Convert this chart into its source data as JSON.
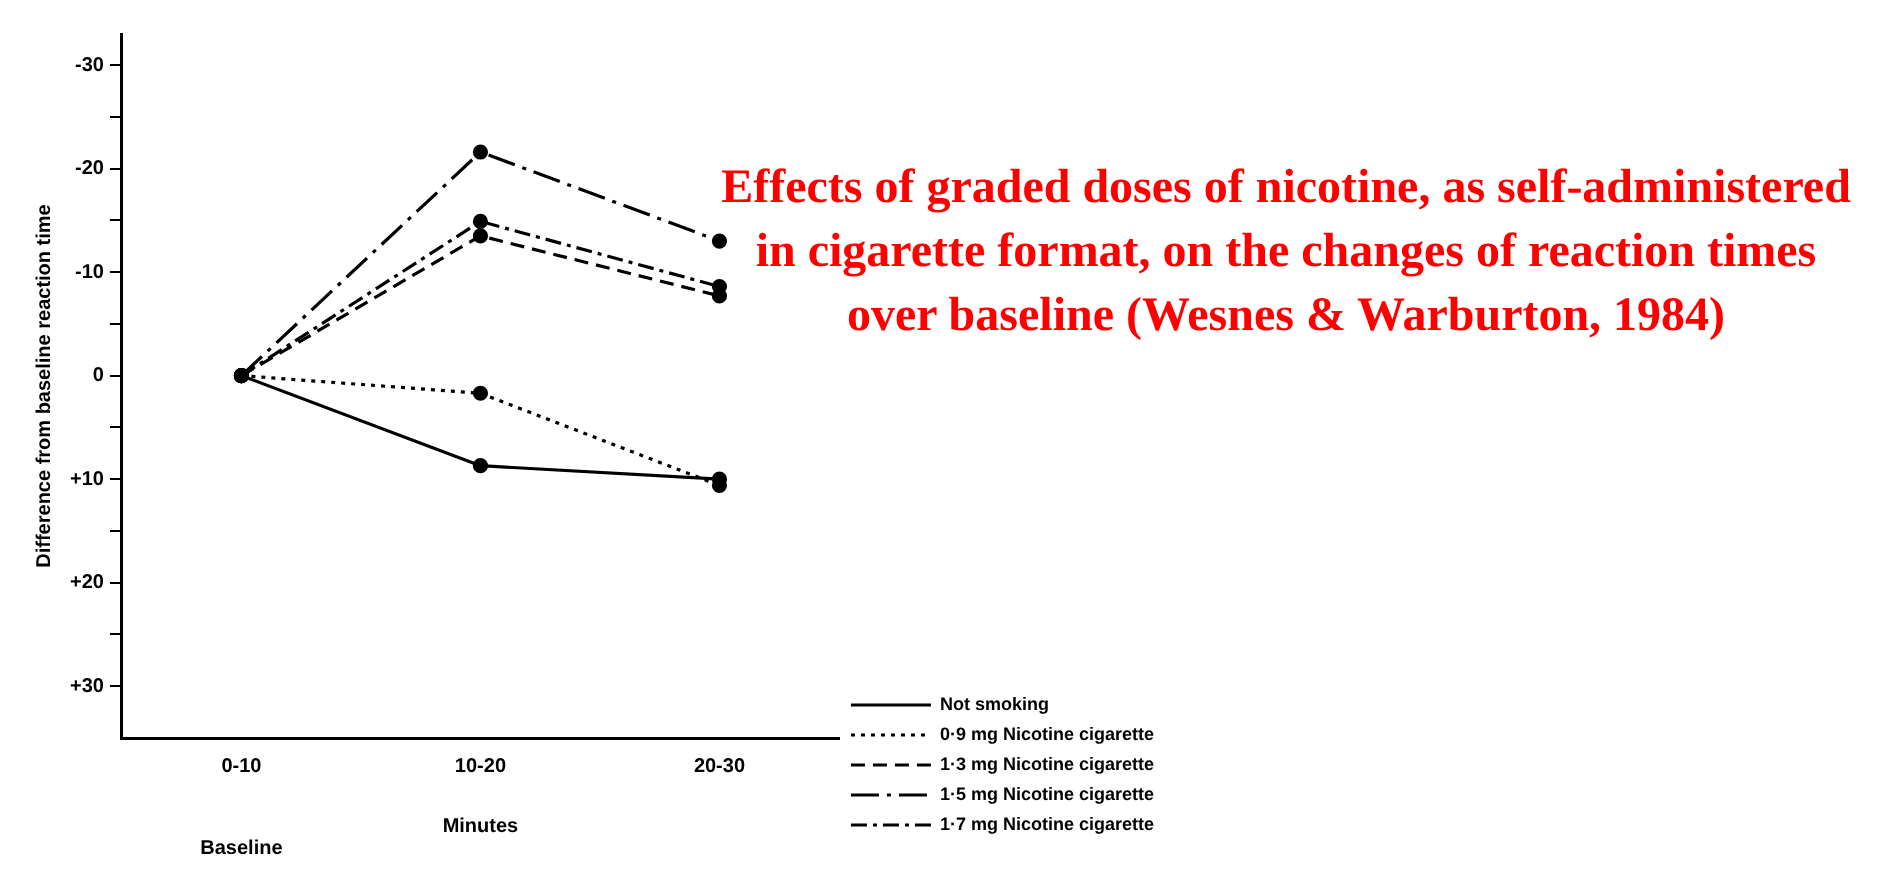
{
  "chart_data": {
    "type": "line",
    "title": "Effects of graded doses of nicotine, as self-administered in cigarette format, on the changes of reaction times over baseline (Wesnes & Warburton, 1984)",
    "xlabel": "Minutes",
    "ylabel": "Difference from baseline reaction time",
    "categories": [
      "0-10",
      "10-20",
      "20-30"
    ],
    "annotations": [
      "Baseline"
    ],
    "ylim": [
      35,
      -33
    ],
    "yticks": [
      -30,
      {
        "value": -25,
        "label": null
      },
      -20,
      {
        "value": -15,
        "label": null
      },
      -10,
      {
        "value": -5,
        "label": null
      },
      0,
      {
        "value": 5,
        "label": null
      },
      {
        "value": 10,
        "label": "+10"
      },
      {
        "value": 15,
        "label": null
      },
      {
        "value": 20,
        "label": "+20"
      },
      {
        "value": 25,
        "label": null
      },
      {
        "value": 30,
        "label": "+30"
      }
    ],
    "series": [
      {
        "name": "Not smoking",
        "color": "#000000",
        "line_style": "solid",
        "values": [
          0,
          8.7,
          10
        ]
      },
      {
        "name": "0·9 mg Nicotine cigarette",
        "color": "#000000",
        "line_style": "dotted",
        "values": [
          0,
          1.7,
          10.6
        ]
      },
      {
        "name": "1·3 mg Nicotine cigarette",
        "color": "#000000",
        "line_style": "dashed",
        "values": [
          0,
          -13.5,
          -7.7
        ]
      },
      {
        "name": "1·5 mg Nicotine cigarette",
        "color": "#000000",
        "line_style": "longdashdot",
        "values": [
          0,
          -21.6,
          -13
        ]
      },
      {
        "name": "1·7 mg Nicotine cigarette",
        "color": "#000000",
        "line_style": "dashdot",
        "values": [
          0,
          -14.9,
          -8.6
        ]
      }
    ],
    "marker": "circle",
    "grid": false,
    "legend": "bottom right"
  }
}
